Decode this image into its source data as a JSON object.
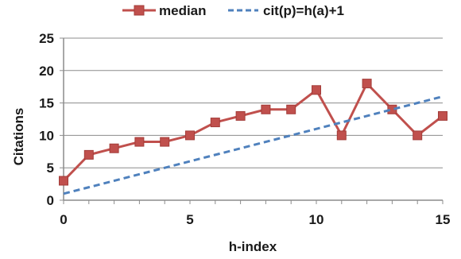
{
  "chart_data": {
    "type": "line",
    "xlabel": "h-index",
    "ylabel": "Citations",
    "xlim": [
      0,
      15
    ],
    "ylim": [
      0,
      25
    ],
    "xticks": [
      "0",
      "5",
      "10",
      "15"
    ],
    "yticks": [
      "0",
      "5",
      "10",
      "15",
      "20",
      "25"
    ],
    "grid": "horizontal",
    "legend_position": "top",
    "series": [
      {
        "name": "median",
        "color": "#c0504d",
        "style": "solid-with-square-markers",
        "x": [
          0,
          1,
          2,
          3,
          4,
          5,
          6,
          7,
          8,
          9,
          10,
          11,
          12,
          13,
          14,
          15
        ],
        "y": [
          3,
          7,
          8,
          9,
          9,
          10,
          12,
          13,
          14,
          14,
          17,
          10,
          18,
          14,
          10,
          13
        ]
      },
      {
        "name": "cit(p)=h(a)+1",
        "color": "#4f81bd",
        "style": "dashed",
        "x": [
          0,
          15
        ],
        "y": [
          1,
          16
        ]
      }
    ]
  }
}
